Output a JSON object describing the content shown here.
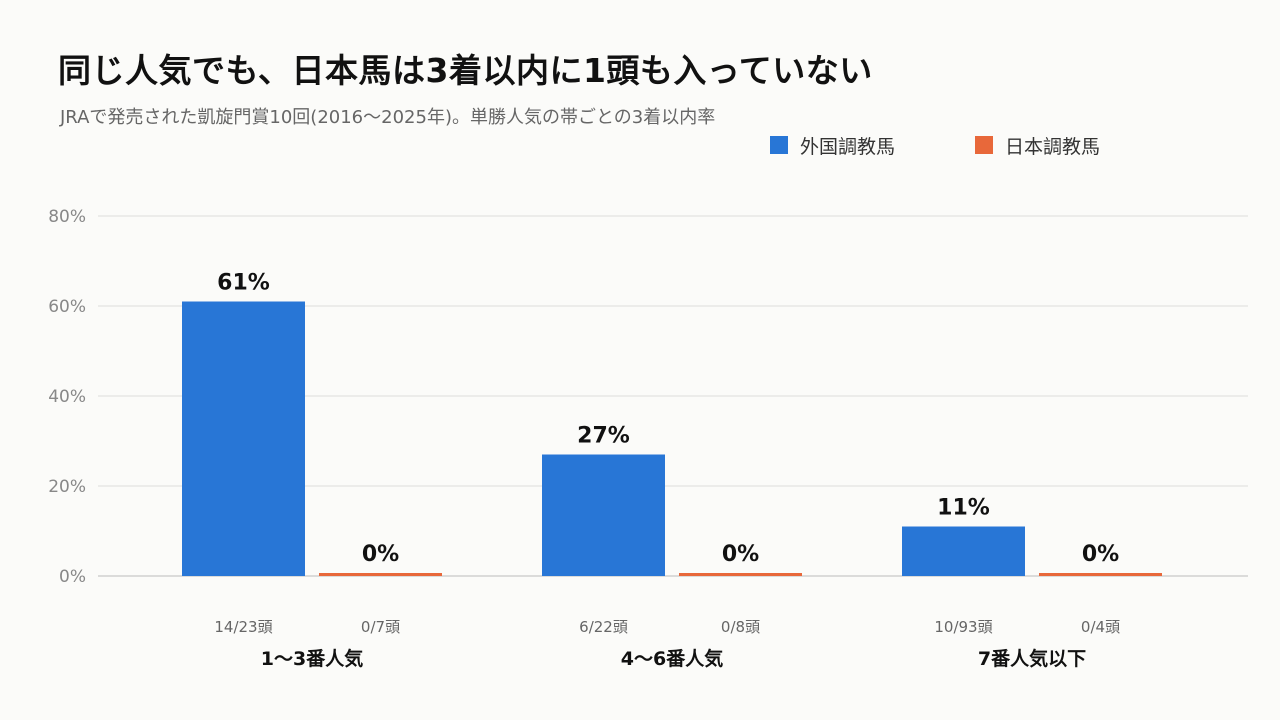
{
  "title": "同じ人気でも、日本馬は3着以内に1頭も入っていない",
  "subtitle": "JRAで発売された凱旋門賞10回(2016〜2025年)。単勝人気の帯ごとの3着以内率",
  "colors": {
    "foreign": "#2876d6",
    "japan": "#e8683a",
    "grid": "#dcdcdc",
    "axis": "#bbbbbb"
  },
  "chart_data": {
    "type": "bar",
    "categories": [
      "1〜3番人気",
      "4〜6番人気",
      "7番人気以下"
    ],
    "series": [
      {
        "name": "外国調教馬",
        "values": [
          61,
          27,
          11
        ],
        "labels": [
          "61%",
          "27%",
          "11%"
        ],
        "counts": [
          "14/23頭",
          "6/22頭",
          "10/93頭"
        ]
      },
      {
        "name": "日本調教馬",
        "values": [
          0,
          0,
          0
        ],
        "labels": [
          "0%",
          "0%",
          "0%"
        ],
        "counts": [
          "0/7頭",
          "0/8頭",
          "0/4頭"
        ]
      }
    ],
    "ylim": [
      0,
      80
    ],
    "yticks": [
      0,
      20,
      40,
      60,
      80
    ],
    "ytick_labels": [
      "0%",
      "20%",
      "40%",
      "60%",
      "80%"
    ],
    "grid": true,
    "legend": "top-right"
  }
}
